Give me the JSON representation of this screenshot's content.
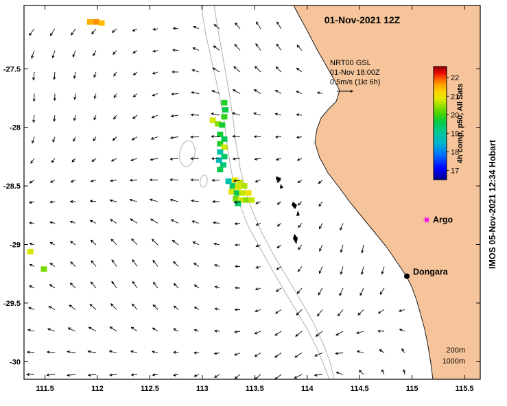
{
  "figure": {
    "title": "01-Nov-2021 12Z",
    "credit": "IMOS 05-Nov-2021 12:34 Hobart"
  },
  "legend": {
    "line1": "NRT00 GSL",
    "line2": "01-Nov 18:00Z",
    "line3": "0.5m/s (1kt 6h)"
  },
  "depth_labels": [
    "200m",
    "1000m"
  ],
  "markers": [
    {
      "name": "argo",
      "label": "Argo",
      "lon": 115.14,
      "lat": -28.79,
      "color": "#ee00ee",
      "symbol": "star"
    },
    {
      "name": "dongara",
      "label": "Dongara",
      "lon": 114.95,
      "lat": -29.27,
      "color": "#000000",
      "symbol": "dot"
    }
  ],
  "colorbar": {
    "label": "4h comp, p50, All Sats",
    "label_color": "#0000b4",
    "vmin": 16.5,
    "vmax": 22.6,
    "ticks": [
      17,
      18,
      19,
      20,
      21,
      22
    ],
    "stops": [
      [
        0,
        "#00008F"
      ],
      [
        0.1,
        "#0000FF"
      ],
      [
        0.22,
        "#0070FF"
      ],
      [
        0.32,
        "#00B4D0"
      ],
      [
        0.42,
        "#00C896"
      ],
      [
        0.5,
        "#00C850"
      ],
      [
        0.58,
        "#44D400"
      ],
      [
        0.66,
        "#A0E000"
      ],
      [
        0.72,
        "#E8E800"
      ],
      [
        0.78,
        "#FFD000"
      ],
      [
        0.84,
        "#FFA000"
      ],
      [
        0.9,
        "#FF5000"
      ],
      [
        0.95,
        "#E00000"
      ],
      [
        1,
        "#900000"
      ]
    ]
  },
  "axes": {
    "lon_range": [
      111.3,
      115.65
    ],
    "lat_range": [
      -30.15,
      -26.96
    ],
    "x_ticks": [
      {
        "v": 111.5,
        "t": "111.5"
      },
      {
        "v": 112,
        "t": "112"
      },
      {
        "v": 112.5,
        "t": "112.5"
      },
      {
        "v": 113,
        "t": "113"
      },
      {
        "v": 113.5,
        "t": "113.5"
      },
      {
        "v": 114,
        "t": "114"
      },
      {
        "v": 114.5,
        "t": "114.5"
      },
      {
        "v": 115,
        "t": "115"
      },
      {
        "v": 115.5,
        "t": "115.5"
      }
    ],
    "y_ticks": [
      {
        "v": -27.5,
        "t": "-27.5"
      },
      {
        "v": -28,
        "t": "-28"
      },
      {
        "v": -28.5,
        "t": "-28.5"
      },
      {
        "v": -29,
        "t": "-29"
      },
      {
        "v": -29.5,
        "t": "-29.5"
      },
      {
        "v": -30,
        "t": "-30"
      }
    ]
  },
  "map": {
    "land_color": "#F6C49A",
    "contour_color": "#b0b0b0",
    "ocean_color": "#ffffff"
  },
  "chart_data": {
    "type": "map-vector-field",
    "description": "HF-radar sea surface current vectors off Dongara WA with GSL colored grid cells; colorbar scale 17-22 (4h comp, p50, All Sats)",
    "reference_vector": {
      "label": "0.5m/s (1kt 6h)",
      "speed_mps": 0.5
    },
    "vector_field": {
      "grid_spacing_deg": 0.2,
      "coverage": "ocean area west of coastline, lon 111.35-115.1, lat -27.2 to -30.1",
      "flow_summary": "small black arrows, predominantly westward to southwestward with local directional variation"
    },
    "cells": [
      [
        111.93,
        -27.1,
        21.5
      ],
      [
        111.99,
        -27.1,
        21.7
      ],
      [
        112.04,
        -27.11,
        21.4
      ],
      [
        113.21,
        -27.79,
        19.8
      ],
      [
        113.22,
        -27.85,
        19.6
      ],
      [
        113.21,
        -27.91,
        19.9
      ],
      [
        113.1,
        -27.94,
        20.8
      ],
      [
        113.15,
        -27.97,
        20.4
      ],
      [
        113.19,
        -27.98,
        19.7
      ],
      [
        113.17,
        -28.06,
        19.7
      ],
      [
        113.21,
        -28.1,
        19.5
      ],
      [
        113.17,
        -28.14,
        19.8
      ],
      [
        113.21,
        -28.17,
        20.8
      ],
      [
        113.17,
        -28.21,
        18.9
      ],
      [
        113.21,
        -28.25,
        19.4
      ],
      [
        113.16,
        -28.28,
        18.7
      ],
      [
        113.2,
        -28.32,
        19.3
      ],
      [
        113.17,
        -28.36,
        19.6
      ],
      [
        113.25,
        -28.46,
        18.8
      ],
      [
        113.31,
        -28.45,
        20.9
      ],
      [
        113.36,
        -28.47,
        20.7
      ],
      [
        113.29,
        -28.5,
        19.5
      ],
      [
        113.34,
        -28.51,
        20.8
      ],
      [
        113.4,
        -28.5,
        20.6
      ],
      [
        113.28,
        -28.55,
        20.8
      ],
      [
        113.33,
        -28.56,
        19.6
      ],
      [
        113.38,
        -28.56,
        20.7
      ],
      [
        113.44,
        -28.56,
        21.0
      ],
      [
        113.32,
        -28.61,
        20.3
      ],
      [
        113.37,
        -28.62,
        20.8
      ],
      [
        113.42,
        -28.62,
        20.4
      ],
      [
        113.47,
        -28.62,
        20.7
      ],
      [
        113.34,
        -28.65,
        19.4
      ],
      [
        111.36,
        -29.06,
        20.8
      ],
      [
        111.49,
        -29.21,
        20.3
      ]
    ]
  }
}
